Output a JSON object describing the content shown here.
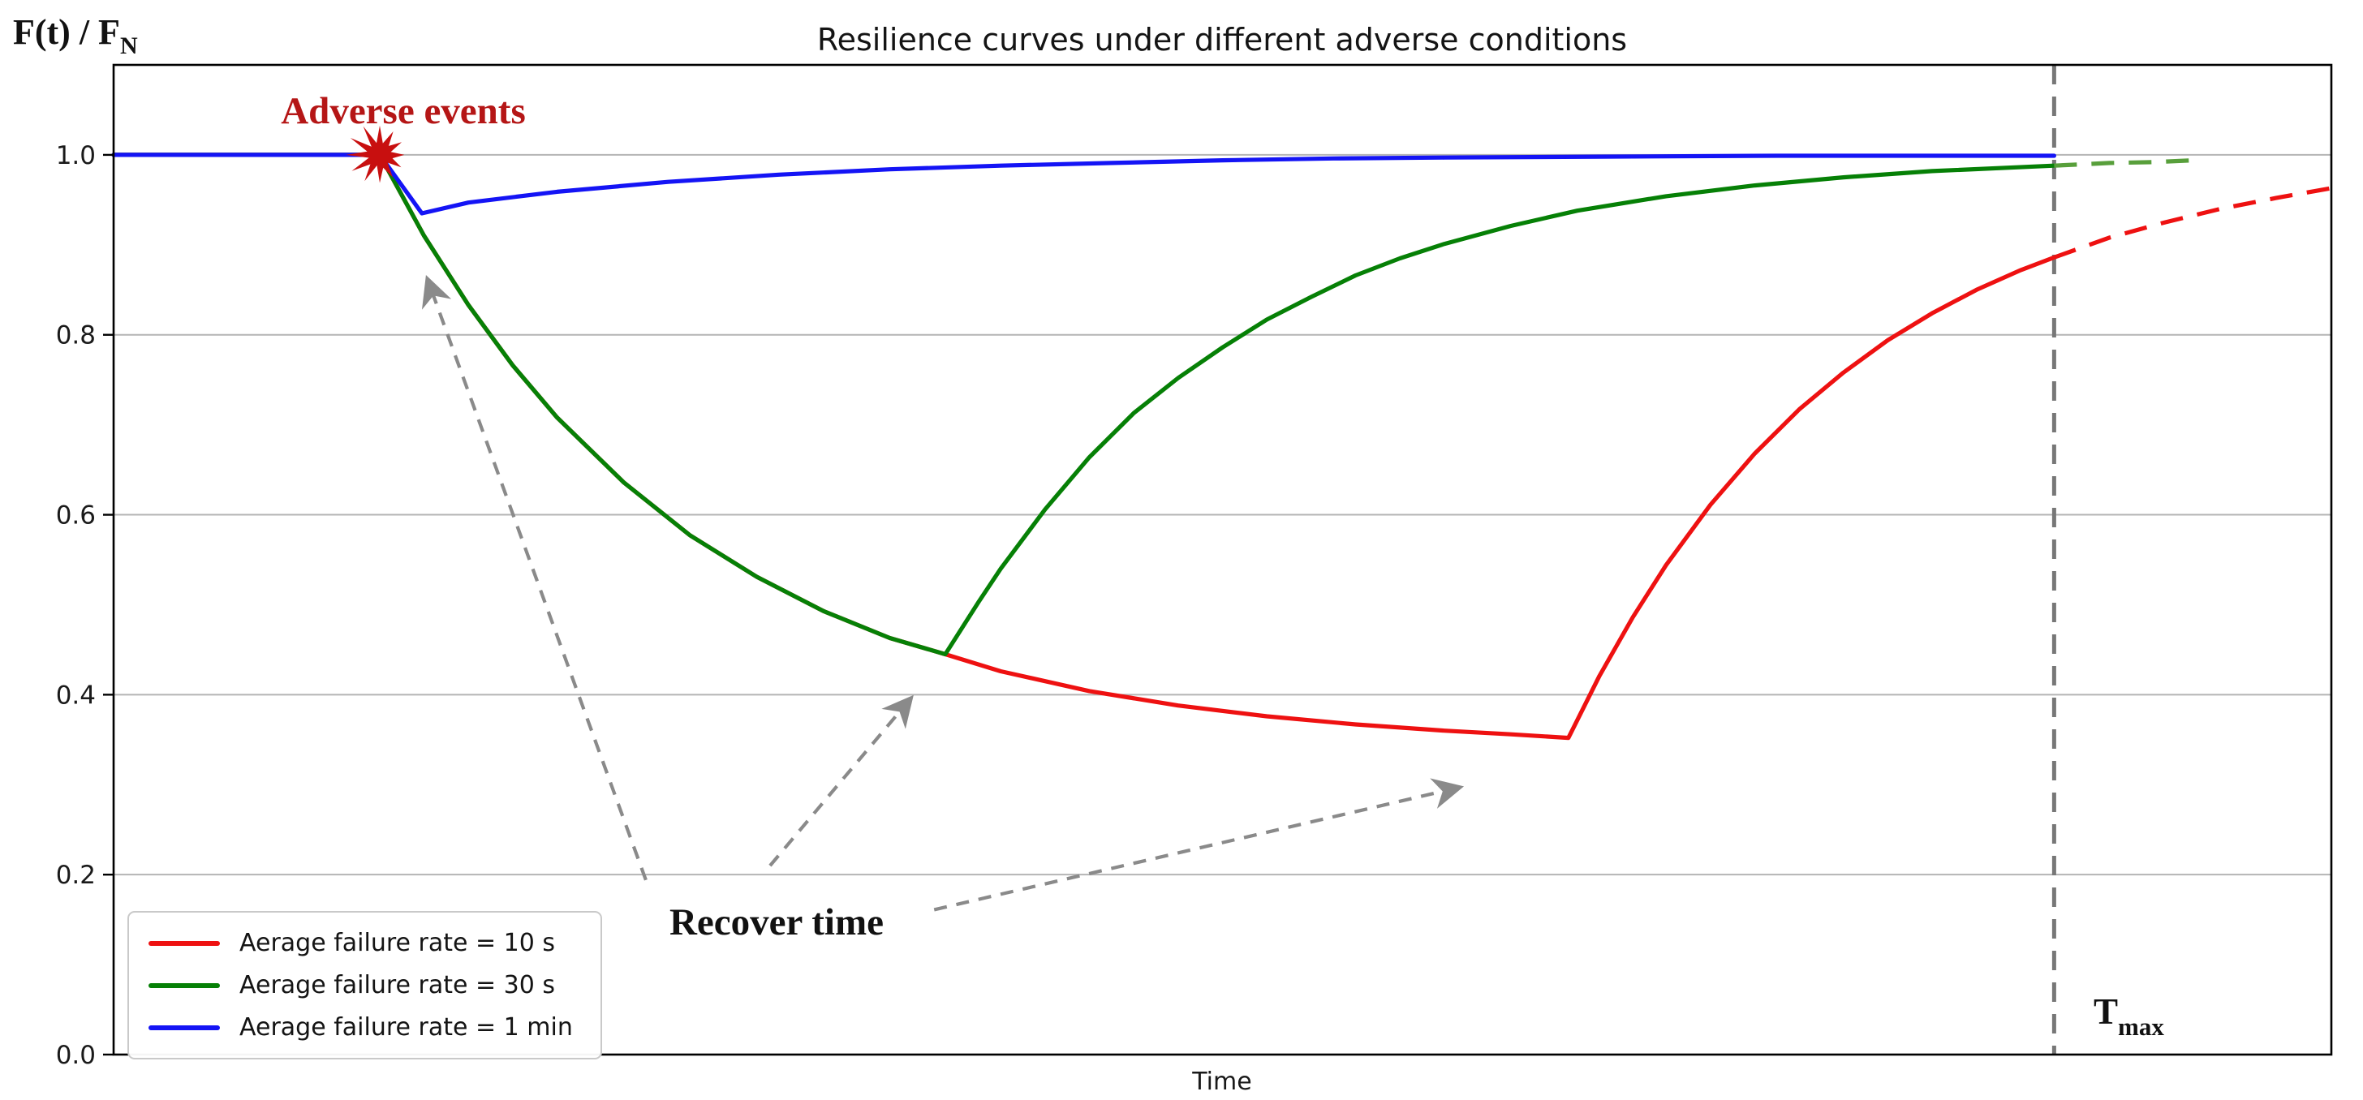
{
  "chart_data": {
    "type": "line",
    "title": "Resilience curves under different adverse conditions",
    "xlabel": "Time",
    "ylabel_main": "F(t) / F",
    "ylabel_sub": "N",
    "xlim": [
      0,
      100
    ],
    "ylim": [
      0,
      1.1
    ],
    "grid": "horizontal-only",
    "yticks": [
      {
        "v": 0.0,
        "label": "0.0"
      },
      {
        "v": 0.2,
        "label": "0.2"
      },
      {
        "v": 0.4,
        "label": "0.4"
      },
      {
        "v": 0.6,
        "label": "0.6"
      },
      {
        "v": 0.8,
        "label": "0.8"
      },
      {
        "v": 1.0,
        "label": "1.0"
      }
    ],
    "legend": {
      "position": "lower-left",
      "entries": [
        {
          "label": "Aerage failure rate = 10 s",
          "color": "#ee1111"
        },
        {
          "label": "Aerage failure rate = 30 s",
          "color": "#068006"
        },
        {
          "label": "Aerage failure rate = 1 min",
          "color": "#1414f5"
        }
      ]
    },
    "series": [
      {
        "name": "Aerage failure rate = 10 s",
        "color": "#ee1111",
        "dashed_color": "#ee1111",
        "solid": [
          [
            0,
            1.0
          ],
          [
            12,
            1.0
          ],
          [
            14,
            0.91
          ],
          [
            16,
            0.833
          ],
          [
            18,
            0.766
          ],
          [
            20,
            0.708
          ],
          [
            23,
            0.636
          ],
          [
            26,
            0.577
          ],
          [
            29,
            0.531
          ],
          [
            32,
            0.493
          ],
          [
            35,
            0.463
          ],
          [
            37.5,
            0.445
          ],
          [
            40,
            0.426
          ],
          [
            44,
            0.404
          ],
          [
            48,
            0.388
          ],
          [
            52,
            0.376
          ],
          [
            56,
            0.367
          ],
          [
            60,
            0.36
          ],
          [
            63,
            0.356
          ],
          [
            65.6,
            0.352
          ],
          [
            67,
            0.421
          ],
          [
            68.5,
            0.486
          ],
          [
            70,
            0.544
          ],
          [
            72,
            0.611
          ],
          [
            74,
            0.668
          ],
          [
            76,
            0.717
          ],
          [
            78,
            0.758
          ],
          [
            80,
            0.794
          ],
          [
            82,
            0.824
          ],
          [
            84,
            0.85
          ],
          [
            86,
            0.872
          ],
          [
            87.5,
            0.886
          ]
        ],
        "dashed": [
          [
            87.5,
            0.886
          ],
          [
            90,
            0.908
          ],
          [
            92.5,
            0.925
          ],
          [
            95,
            0.94
          ],
          [
            97.5,
            0.952
          ],
          [
            100,
            0.963
          ]
        ]
      },
      {
        "name": "Aerage failure rate = 30 s",
        "color": "#068006",
        "dashed_color": "#589f3b",
        "solid": [
          [
            0,
            1.0
          ],
          [
            12,
            1.0
          ],
          [
            14,
            0.91
          ],
          [
            16,
            0.833
          ],
          [
            18,
            0.766
          ],
          [
            20,
            0.708
          ],
          [
            23,
            0.636
          ],
          [
            26,
            0.577
          ],
          [
            29,
            0.531
          ],
          [
            32,
            0.493
          ],
          [
            35,
            0.463
          ],
          [
            37.5,
            0.445
          ],
          [
            39,
            0.503
          ],
          [
            40,
            0.54
          ],
          [
            42,
            0.606
          ],
          [
            44,
            0.664
          ],
          [
            46,
            0.713
          ],
          [
            48,
            0.752
          ],
          [
            50,
            0.786
          ],
          [
            52,
            0.817
          ],
          [
            54,
            0.842
          ],
          [
            56,
            0.866
          ],
          [
            58,
            0.885
          ],
          [
            60,
            0.901
          ],
          [
            63,
            0.921
          ],
          [
            66,
            0.938
          ],
          [
            70,
            0.954
          ],
          [
            74,
            0.966
          ],
          [
            78,
            0.975
          ],
          [
            82,
            0.982
          ],
          [
            87.5,
            0.988
          ]
        ],
        "dashed": [
          [
            87.5,
            0.988
          ],
          [
            90,
            0.991
          ],
          [
            92,
            0.992
          ],
          [
            93.8,
            0.994
          ]
        ]
      },
      {
        "name": "Aerage failure rate = 1 min",
        "color": "#1414f5",
        "dashed_color": "#1414f5",
        "solid": [
          [
            0,
            1.0
          ],
          [
            12,
            1.0
          ],
          [
            13.9,
            0.935
          ],
          [
            16,
            0.947
          ],
          [
            20,
            0.959
          ],
          [
            25,
            0.97
          ],
          [
            30,
            0.978
          ],
          [
            35,
            0.984
          ],
          [
            40,
            0.988
          ],
          [
            45,
            0.991
          ],
          [
            50,
            0.994
          ],
          [
            55,
            0.996
          ],
          [
            60,
            0.997
          ],
          [
            67,
            0.998
          ],
          [
            75,
            0.999
          ],
          [
            87.5,
            0.999
          ]
        ],
        "dashed": []
      }
    ],
    "annotations": {
      "adverse_events": {
        "text": "Adverse events",
        "color": "#b51616",
        "t": 13.1,
        "v": 1.036
      },
      "event_marker": {
        "shape": "starburst",
        "color": "#c80f0f",
        "t": 12,
        "v": 1.0,
        "outer_radius": 36,
        "inner_radius": 15,
        "spikes": 12
      },
      "recover_time": {
        "text": "Recover time",
        "color": "#111111",
        "t": 29.9,
        "v": 0.134
      },
      "tmax_line": {
        "t": 87.5,
        "color": "#777777"
      },
      "tmax_label": {
        "text_main": "T",
        "text_sub": "max",
        "color": "#111111",
        "t": 89.2,
        "v": 0.038
      },
      "arrows": {
        "color": "#8a8a8a",
        "items": [
          {
            "from": [
              24.0,
              0.194
            ],
            "to": [
              14.15,
              0.862
            ]
          },
          {
            "from": [
              29.6,
              0.21
            ],
            "to": [
              35.95,
              0.396
            ]
          },
          {
            "from": [
              37.0,
              0.161
            ],
            "to": [
              60.7,
              0.297
            ]
          }
        ]
      }
    }
  }
}
